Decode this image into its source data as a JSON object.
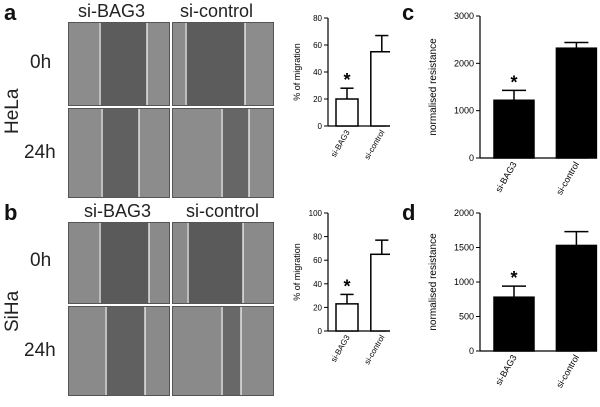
{
  "panels": {
    "a": {
      "letter": "a",
      "cell_line": "HeLa",
      "col1": "si-BAG3",
      "col2": "si-control",
      "row1": "0h",
      "row2": "24h"
    },
    "b": {
      "letter": "b",
      "cell_line": "SiHa",
      "col1": "si-BAG3",
      "col2": "si-control",
      "row1": "0h",
      "row2": "24h"
    },
    "c": {
      "letter": "c"
    },
    "d": {
      "letter": "d"
    }
  },
  "chart_data": [
    {
      "id": "a-migration",
      "type": "bar",
      "categories": [
        "si-BAG3",
        "si-control"
      ],
      "values": [
        20,
        55
      ],
      "errors": [
        8,
        12
      ],
      "ylabel": "% of migration",
      "ylim": [
        0,
        80
      ],
      "yticks": [
        0,
        20,
        40,
        60,
        80
      ],
      "bar_fill": "#ffffff",
      "annotation": "*"
    },
    {
      "id": "c-resistance",
      "type": "bar",
      "categories": [
        "si-BAG3",
        "si-control"
      ],
      "values": [
        1220,
        2320
      ],
      "errors": [
        210,
        120
      ],
      "ylabel": "normalised resistance",
      "ylim": [
        0,
        3000
      ],
      "yticks": [
        0,
        1000,
        2000,
        3000
      ],
      "bar_fill": "#000000",
      "annotation": "*"
    },
    {
      "id": "b-migration",
      "type": "bar",
      "categories": [
        "si-BAG3",
        "si-control"
      ],
      "values": [
        23,
        65
      ],
      "errors": [
        8,
        12
      ],
      "ylabel": "% of migration",
      "ylim": [
        0,
        100
      ],
      "yticks": [
        0,
        20,
        40,
        60,
        80,
        100
      ],
      "bar_fill": "#ffffff",
      "annotation": "*"
    },
    {
      "id": "d-resistance",
      "type": "bar",
      "categories": [
        "si-BAG3",
        "si-control"
      ],
      "values": [
        780,
        1530
      ],
      "errors": [
        160,
        200
      ],
      "ylabel": "normalised resistance",
      "ylim": [
        0,
        2000
      ],
      "yticks": [
        0,
        500,
        1000,
        1500,
        2000
      ],
      "bar_fill": "#000000",
      "annotation": "*"
    }
  ]
}
